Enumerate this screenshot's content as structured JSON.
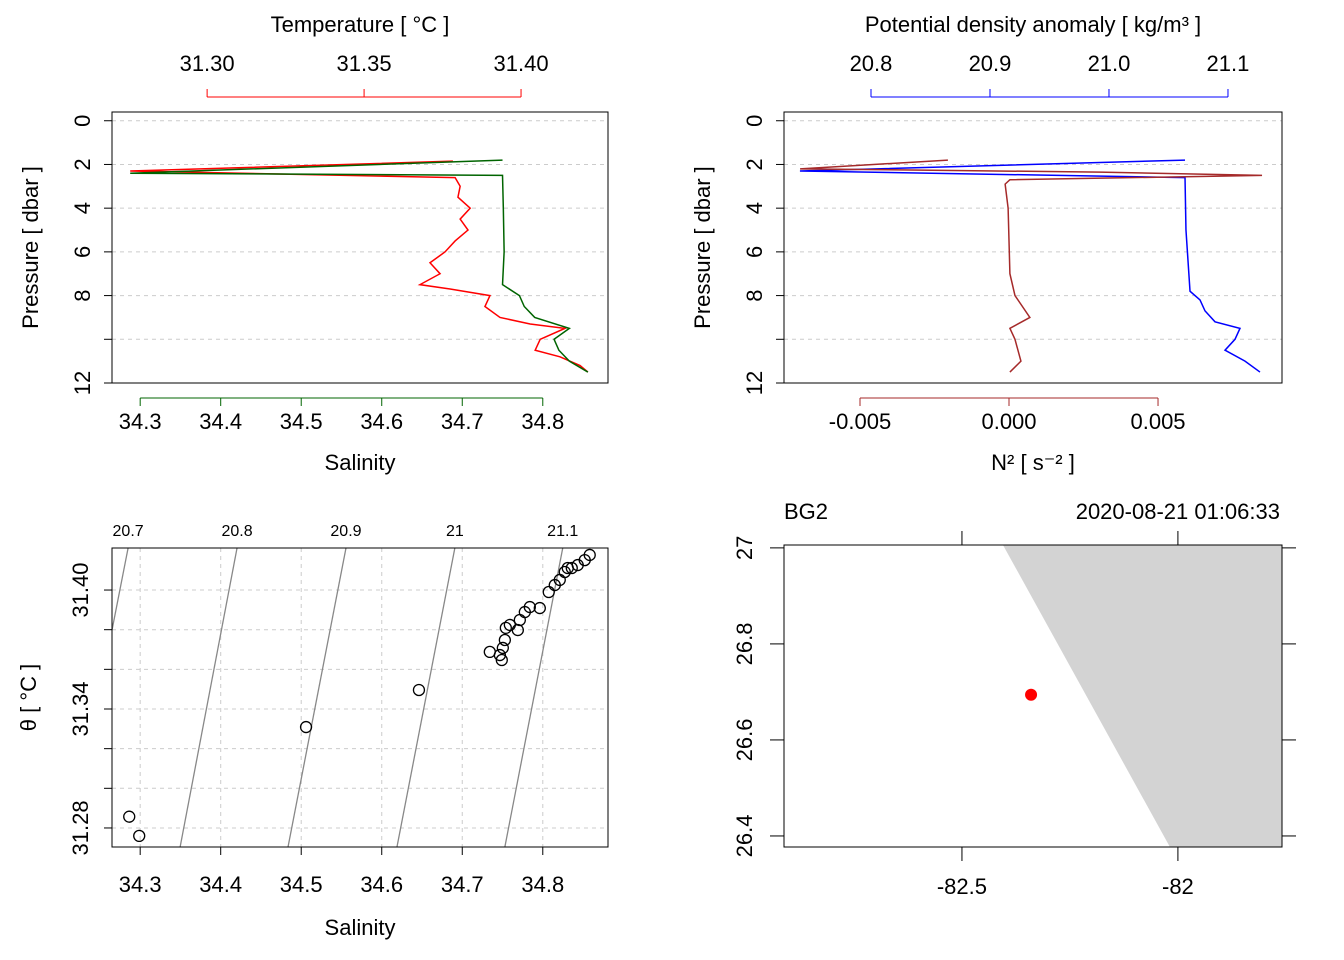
{
  "chart_data": [
    {
      "type": "profile",
      "ylabel": "Pressure [ dbar ]",
      "ylim": [
        -0.4,
        12
      ],
      "y_reversed": true,
      "yticks": [
        0,
        2,
        4,
        6,
        8,
        12
      ],
      "ygrid": [
        0,
        2,
        4,
        6,
        8,
        10,
        12
      ],
      "grid": true,
      "top": {
        "label": "Temperature [ °C ]",
        "color": "#ff0000",
        "lim": [
          31.2697,
          31.4277
        ],
        "ticks": [
          {
            "value": 31.3,
            "label": "31.30"
          },
          31.35,
          {
            "value": 31.4,
            "label": "31.40"
          }
        ]
      },
      "bottom": {
        "label": "Salinity",
        "color": "#006400",
        "lim": [
          34.265,
          34.881
        ],
        "ticks": [
          34.3,
          34.4,
          34.5,
          34.6,
          34.7,
          34.8
        ]
      },
      "series": [
        {
          "axis": "top",
          "color": "#ff0000",
          "pressure": [
            1.85,
            2.3,
            2.6,
            3,
            3.5,
            4,
            4.5,
            5,
            5.5,
            6,
            6.5,
            7,
            7.5,
            7.7,
            8,
            8.5,
            9,
            9.3,
            9.5,
            10,
            10.5,
            10.8,
            11.2,
            11.5
          ],
          "values": [
            31.3783,
            31.2755,
            31.379,
            31.3806,
            31.3799,
            31.3838,
            31.3806,
            31.3831,
            31.379,
            31.3758,
            31.371,
            31.3742,
            31.3678,
            31.3774,
            31.3901,
            31.3885,
            31.3933,
            31.4029,
            31.414,
            31.4061,
            31.4045,
            31.4124,
            31.4188,
            31.4213
          ]
        },
        {
          "axis": "bottom",
          "color": "#006400",
          "pressure": [
            1.8,
            2.4,
            2.5,
            4,
            6,
            7.5,
            8,
            8.5,
            9,
            9.5,
            10,
            10.5,
            11,
            11.5
          ],
          "values": [
            34.75,
            34.2876,
            34.75,
            34.751,
            34.752,
            34.75,
            34.771,
            34.777,
            34.79,
            34.833,
            34.814,
            34.82,
            34.833,
            34.856
          ]
        }
      ]
    },
    {
      "type": "profile",
      "ylabel": "Pressure [ dbar ]",
      "ylim": [
        -0.4,
        12
      ],
      "y_reversed": true,
      "yticks": [
        0,
        2,
        4,
        6,
        8,
        12
      ],
      "ygrid": [
        0,
        2,
        4,
        6,
        8,
        10,
        12
      ],
      "grid": true,
      "top": {
        "label": "Potential density anomaly [ kg/m³ ]",
        "color": "#0000ff",
        "lim": [
          20.7269,
          21.1454
        ],
        "ticks": [
          20.8,
          20.9,
          {
            "value": 21,
            "label": "21.0"
          },
          21.1
        ]
      },
      "bottom": {
        "label": "N² [ s⁻² ]",
        "color": "#a52a2a",
        "lim": [
          -0.00755,
          0.00916
        ],
        "ticks": [
          {
            "value": -0.005,
            "label": "-0.005"
          },
          {
            "value": 0,
            "label": "0.000"
          },
          {
            "value": 0.005,
            "label": "0.005"
          }
        ]
      },
      "series": [
        {
          "axis": "top",
          "color": "#0000ff",
          "pressure": [
            1.8,
            2.3,
            2.6,
            5,
            7.8,
            8.2,
            8.7,
            9.2,
            9.5,
            10,
            10.5,
            11,
            11.5
          ],
          "values": [
            21.0639,
            20.7403,
            21.0639,
            21.0647,
            21.0681,
            21.0765,
            21.0807,
            21.0891,
            21.1101,
            21.1059,
            21.0975,
            21.1143,
            21.1269
          ]
        },
        {
          "axis": "bottom",
          "color": "#a52a2a",
          "pressure": [
            1.8,
            2.2,
            2.35,
            2.5,
            2.7,
            2.9,
            4,
            7,
            8,
            9,
            9.5,
            10,
            11,
            11.5
          ],
          "values": [
            -0.00205,
            -0.00701,
            0.00305,
            0.00849,
            3e-05,
            -0.00013,
            -3e-05,
            3e-05,
            0.0002,
            0.0007,
            3e-05,
            0.0002,
            0.0004,
            3e-05
          ]
        }
      ]
    },
    {
      "type": "ts",
      "xlabel": "Salinity",
      "ylabel": "θ [ °C ]",
      "xlim": [
        34.265,
        34.881
      ],
      "ylim": [
        31.2704,
        31.4212
      ],
      "xticks": [
        34.3,
        34.4,
        34.5,
        34.6,
        34.7,
        34.8
      ],
      "yticks": [
        31.28,
        31.34,
        {
          "value": 31.4,
          "label": "31.40"
        }
      ],
      "ygrid": [
        31.28,
        31.3,
        31.32,
        31.34,
        31.36,
        31.38,
        31.4
      ],
      "grid": true,
      "contour_color": "#888888",
      "contours": [
        {
          "level": 20.7,
          "x": [
            34.265,
            34.285
          ],
          "y": [
            31.3798,
            31.4212
          ]
        },
        {
          "level": 20.8,
          "x": [
            34.3496,
            34.4203
          ],
          "y": [
            31.2704,
            31.4212
          ]
        },
        {
          "level": 20.9,
          "x": [
            34.4836,
            34.5556
          ],
          "y": [
            31.2704,
            31.4212
          ]
        },
        {
          "level": 21,
          "x": [
            34.6189,
            34.6908
          ],
          "y": [
            31.2704,
            31.4212
          ]
        },
        {
          "level": 21.1,
          "x": [
            34.7529,
            34.8248
          ],
          "y": [
            31.2704,
            31.4212
          ]
        }
      ],
      "x": [
        34.2864,
        34.2988,
        34.506,
        34.6462,
        34.7342,
        34.7467,
        34.7491,
        34.7504,
        34.7529,
        34.7541,
        34.7591,
        34.769,
        34.7715,
        34.7777,
        34.7839,
        34.7963,
        34.8074,
        34.8149,
        34.8211,
        34.8273,
        34.831,
        34.836,
        34.8434,
        34.8521,
        34.8583
      ],
      "values": [
        31.2857,
        31.276,
        31.3309,
        31.3496,
        31.3688,
        31.3672,
        31.3647,
        31.3708,
        31.3748,
        31.3809,
        31.3824,
        31.3798,
        31.3849,
        31.3889,
        31.3914,
        31.3909,
        31.399,
        31.4025,
        31.4051,
        31.4091,
        31.4111,
        31.4111,
        31.4126,
        31.4151,
        31.4177
      ]
    },
    {
      "type": "map",
      "title_left": "BG2",
      "title_right": "2020-08-21 01:06:33",
      "xlim": [
        -82.912,
        -81.759
      ],
      "ylim": [
        26.377,
        27.006
      ],
      "xticks": [
        -82.5,
        -82
      ],
      "yticks": [
        27,
        26.8,
        26.6,
        26.4
      ],
      "land": {
        "color": "#d3d3d3",
        "lon": [
          -82.405,
          -81.759,
          -81.759,
          -82.0185
        ],
        "lat": [
          27.006,
          27.006,
          26.377,
          26.377
        ]
      },
      "station": {
        "color": "#ff0000",
        "lon": -82.34,
        "lat": 26.694
      }
    }
  ]
}
